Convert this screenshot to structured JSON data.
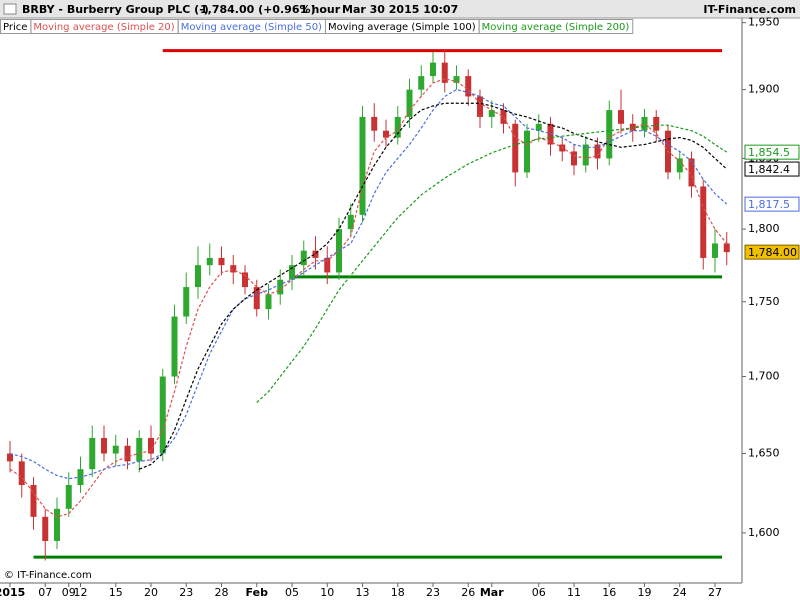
{
  "chart_data": {
    "type": "candlestick",
    "title": "BRBY - Burberry Group PLC (-)",
    "subtitle": "1,784.00 (+0.96%)",
    "period": "1 hour",
    "timestamp": "Mar 30 2015 10:07",
    "brand": "IT-Finance.com",
    "watermark": "© IT-Finance.com",
    "categories": [
      "2015",
      null,
      null,
      "07",
      null,
      "09",
      "12",
      null,
      null,
      "15",
      null,
      null,
      "20",
      null,
      null,
      "23",
      null,
      null,
      "28",
      null,
      null,
      "Feb",
      null,
      null,
      "05",
      null,
      null,
      "10",
      null,
      null,
      "13",
      null,
      null,
      "18",
      null,
      null,
      "23",
      null,
      null,
      "26",
      null,
      "Mar",
      null,
      null,
      null,
      "06",
      null,
      null,
      "11",
      null,
      null,
      "16",
      null,
      null,
      "19",
      null,
      null,
      "24",
      null,
      null,
      "27",
      null
    ],
    "price": {
      "name": "Price",
      "up_color": "#2ea82e",
      "down_color": "#c83232",
      "last_label": "1,784.00",
      "open": [
        1650,
        1645,
        1630,
        1610,
        1595,
        1615,
        1630,
        1640,
        1660,
        1650,
        1655,
        1645,
        1660,
        1650,
        1700,
        1740,
        1760,
        1775,
        1780,
        1775,
        1770,
        1760,
        1745,
        1755,
        1765,
        1775,
        1785,
        1780,
        1770,
        1800,
        1810,
        1880,
        1870,
        1865,
        1880,
        1900,
        1910,
        1920,
        1905,
        1910,
        1895,
        1880,
        1885,
        1875,
        1840,
        1870,
        1875,
        1860,
        1855,
        1845,
        1860,
        1850,
        1885,
        1875,
        1870,
        1880,
        1870,
        1840,
        1850,
        1830,
        1780,
        1790
      ],
      "high": [
        1658,
        1650,
        1635,
        1615,
        1622,
        1638,
        1648,
        1668,
        1668,
        1662,
        1660,
        1665,
        1668,
        1705,
        1748,
        1770,
        1788,
        1790,
        1788,
        1782,
        1775,
        1765,
        1762,
        1772,
        1782,
        1792,
        1795,
        1788,
        1808,
        1818,
        1888,
        1890,
        1878,
        1888,
        1908,
        1918,
        1928,
        1930,
        1918,
        1915,
        1900,
        1892,
        1890,
        1878,
        1875,
        1882,
        1880,
        1865,
        1860,
        1866,
        1865,
        1892,
        1900,
        1882,
        1886,
        1885,
        1874,
        1855,
        1855,
        1835,
        1800,
        1798
      ],
      "low": [
        1638,
        1622,
        1602,
        1583,
        1590,
        1610,
        1625,
        1635,
        1645,
        1642,
        1640,
        1638,
        1645,
        1645,
        1695,
        1735,
        1752,
        1768,
        1768,
        1762,
        1755,
        1740,
        1738,
        1748,
        1758,
        1768,
        1772,
        1762,
        1765,
        1795,
        1805,
        1862,
        1858,
        1860,
        1872,
        1895,
        1905,
        1898,
        1900,
        1888,
        1872,
        1872,
        1868,
        1830,
        1836,
        1862,
        1852,
        1848,
        1838,
        1840,
        1842,
        1845,
        1868,
        1862,
        1865,
        1862,
        1835,
        1835,
        1822,
        1772,
        1770,
        1775
      ],
      "close": [
        1645,
        1630,
        1610,
        1595,
        1615,
        1630,
        1640,
        1660,
        1650,
        1655,
        1645,
        1660,
        1650,
        1700,
        1740,
        1760,
        1775,
        1780,
        1775,
        1770,
        1760,
        1745,
        1755,
        1765,
        1775,
        1785,
        1780,
        1770,
        1800,
        1810,
        1880,
        1870,
        1865,
        1880,
        1900,
        1910,
        1920,
        1905,
        1910,
        1895,
        1880,
        1885,
        1875,
        1840,
        1870,
        1875,
        1860,
        1855,
        1845,
        1860,
        1850,
        1885,
        1875,
        1870,
        1880,
        1870,
        1840,
        1850,
        1830,
        1780,
        1790,
        1784
      ]
    },
    "series": [
      {
        "name": "Moving average (Simple 20)",
        "color": "#e05050",
        "values": [
          1640,
          1635,
          1625,
          1615,
          1610,
          1612,
          1620,
          1630,
          1640,
          1645,
          1648,
          1650,
          1652,
          1665,
          1690,
          1720,
          1745,
          1760,
          1770,
          1772,
          1768,
          1760,
          1755,
          1758,
          1765,
          1772,
          1778,
          1778,
          1785,
          1795,
          1830,
          1855,
          1865,
          1870,
          1885,
          1895,
          1905,
          1908,
          1906,
          1900,
          1890,
          1885,
          1880,
          1865,
          1860,
          1865,
          1862,
          1858,
          1852,
          1850,
          1852,
          1865,
          1870,
          1872,
          1875,
          1868,
          1855,
          1848,
          1838,
          1815,
          1800,
          1790
        ]
      },
      {
        "name": "Moving average (Simple 50)",
        "color": "#4a6ee0",
        "last_label": "1,817.5",
        "values": [
          1650,
          1648,
          1645,
          1640,
          1636,
          1634,
          1635,
          1637,
          1640,
          1642,
          1643,
          1645,
          1646,
          1650,
          1660,
          1675,
          1695,
          1715,
          1730,
          1745,
          1752,
          1755,
          1758,
          1762,
          1765,
          1770,
          1775,
          1780,
          1785,
          1790,
          1805,
          1825,
          1840,
          1850,
          1860,
          1872,
          1885,
          1895,
          1900,
          1898,
          1895,
          1890,
          1888,
          1880,
          1872,
          1870,
          1868,
          1865,
          1860,
          1858,
          1858,
          1862,
          1866,
          1870,
          1870,
          1866,
          1860,
          1855,
          1848,
          1835,
          1825,
          1817.5
        ]
      },
      {
        "name": "Moving average (Simple 100)",
        "color": "#000000",
        "last_label": "1,842.4",
        "values": [
          null,
          null,
          null,
          null,
          null,
          null,
          null,
          null,
          null,
          null,
          null,
          1640,
          1643,
          1650,
          1665,
          1685,
          1705,
          1720,
          1735,
          1745,
          1752,
          1758,
          1763,
          1768,
          1773,
          1778,
          1783,
          1790,
          1800,
          1815,
          1830,
          1845,
          1858,
          1868,
          1878,
          1885,
          1888,
          1890,
          1890,
          1890,
          1890,
          1888,
          1885,
          1882,
          1880,
          1877,
          1874,
          1872,
          1868,
          1865,
          1862,
          1860,
          1858,
          1859,
          1860,
          1862,
          1864,
          1865,
          1863,
          1858,
          1850,
          1842.4
        ]
      },
      {
        "name": "Moving average (Simple 200)",
        "color": "#1a9a1a",
        "last_label": "1,854.5",
        "values": [
          null,
          null,
          null,
          null,
          null,
          null,
          null,
          null,
          null,
          null,
          null,
          null,
          null,
          null,
          null,
          null,
          null,
          null,
          null,
          null,
          null,
          1683,
          1690,
          1700,
          1710,
          1720,
          1732,
          1745,
          1758,
          1768,
          1778,
          1788,
          1798,
          1808,
          1816,
          1824,
          1830,
          1836,
          1841,
          1846,
          1850,
          1854,
          1857,
          1860,
          1862,
          1864,
          1865,
          1866,
          1867,
          1868,
          1869,
          1870,
          1871,
          1872,
          1873,
          1874,
          1874,
          1872,
          1870,
          1866,
          1860,
          1854.5
        ]
      }
    ],
    "hlines": [
      {
        "value": 1929,
        "color": "#e00000",
        "start": 13
      },
      {
        "value": 1767,
        "color": "#008000",
        "start": 24
      },
      {
        "value": 1585,
        "color": "#008000",
        "start": 2
      }
    ],
    "log_scale": true,
    "grid": false,
    "ylim": [
      1568,
      1952
    ],
    "yticks": [
      {
        "value": 1600,
        "label": "1,600"
      },
      {
        "value": 1650,
        "label": "1,650"
      },
      {
        "value": 1700,
        "label": "1,700"
      },
      {
        "value": 1750,
        "label": "1,750"
      },
      {
        "value": 1800,
        "label": "1,800"
      },
      {
        "value": 1850,
        "label": "1,850"
      },
      {
        "value": 1900,
        "label": "1,900"
      },
      {
        "value": 1950,
        "label": "1,950"
      }
    ]
  }
}
